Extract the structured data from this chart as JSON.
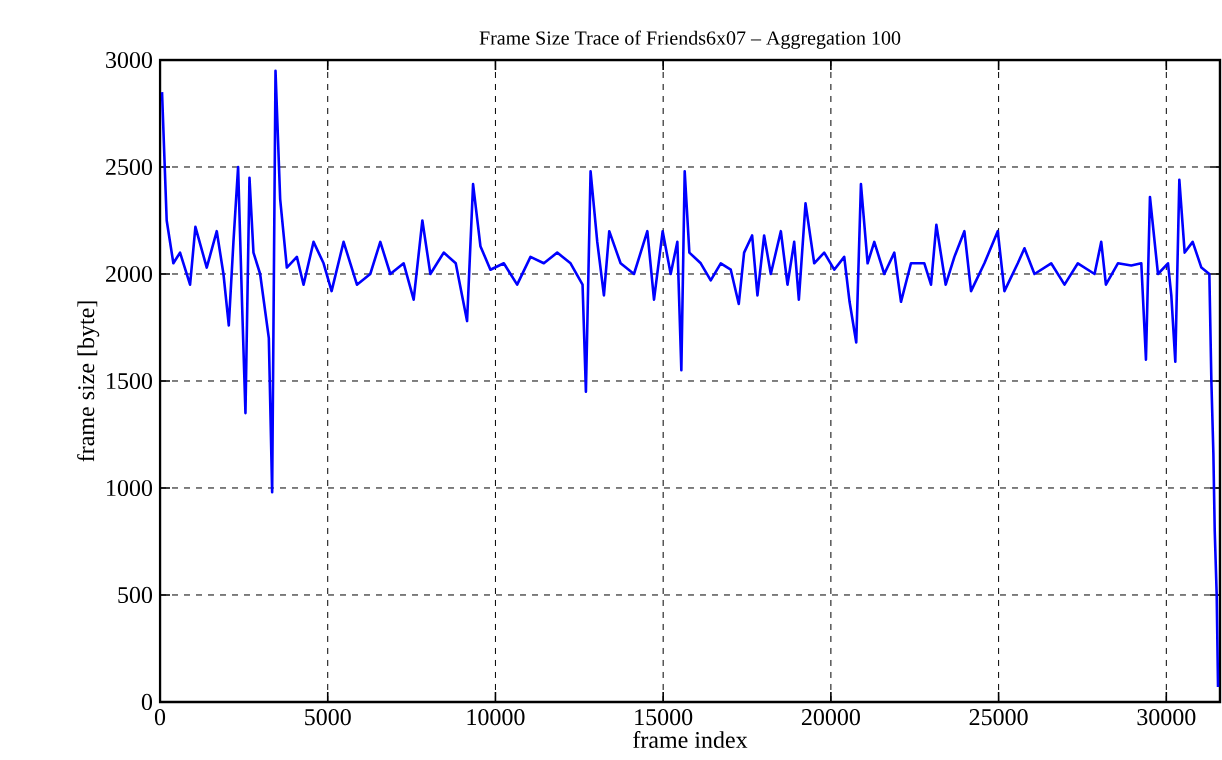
{
  "chart_data": {
    "type": "line",
    "title": "Frame Size Trace of Friends6x07 – Aggregation 100",
    "xlabel": "frame index",
    "ylabel": "frame size [byte]",
    "xlim": [
      0,
      31600
    ],
    "ylim": [
      0,
      3000
    ],
    "xticks": [
      0,
      5000,
      10000,
      15000,
      20000,
      25000,
      30000
    ],
    "yticks": [
      0,
      500,
      1000,
      1500,
      2000,
      2500,
      3000
    ],
    "grid": true,
    "marker": "none",
    "line_style": "solid",
    "series": [
      {
        "color": "#0000ff",
        "x": [
          60,
          199,
          398,
          597,
          896,
          1055,
          1393,
          1692,
          1891,
          2050,
          2189,
          2328,
          2448,
          2547,
          2667,
          2786,
          2985,
          3244,
          3343,
          3443,
          3582,
          3781,
          4080,
          4279,
          4577,
          4876,
          5115,
          5473,
          5871,
          6268,
          6567,
          6866,
          7264,
          7562,
          7821,
          8060,
          8458,
          8816,
          9154,
          9333,
          9552,
          9850,
          10249,
          10647,
          11045,
          11443,
          11841,
          12239,
          12597,
          12697,
          12836,
          13035,
          13234,
          13393,
          13731,
          14130,
          14528,
          14727,
          14985,
          15224,
          15423,
          15542,
          15642,
          15781,
          16120,
          16418,
          16717,
          17015,
          17254,
          17413,
          17652,
          17811,
          18010,
          18209,
          18508,
          18707,
          18906,
          19045,
          19244,
          19503,
          19801,
          20100,
          20398,
          20557,
          20756,
          20896,
          21095,
          21294,
          21592,
          21891,
          22090,
          22388,
          22786,
          22985,
          23144,
          23423,
          23682,
          23980,
          24179,
          24577,
          24975,
          25174,
          25572,
          25771,
          26070,
          26567,
          26965,
          27363,
          27861,
          28060,
          28199,
          28557,
          28955,
          29254,
          29393,
          29512,
          29751,
          30050,
          30149,
          30268,
          30388,
          30547,
          30786,
          31045,
          31283,
          31343,
          31403,
          31443,
          31502,
          31542
        ],
        "values": [
          2850,
          2250,
          2050,
          2100,
          1950,
          2220,
          2030,
          2200,
          2000,
          1760,
          2150,
          2500,
          1850,
          1350,
          2450,
          2100,
          2000,
          1700,
          980,
          2950,
          2350,
          2030,
          2080,
          1950,
          2150,
          2050,
          1920,
          2150,
          1950,
          2000,
          2150,
          2000,
          2050,
          1880,
          2250,
          2000,
          2100,
          2050,
          1780,
          2420,
          2130,
          2020,
          2050,
          1950,
          2080,
          2050,
          2100,
          2050,
          1950,
          1450,
          2480,
          2150,
          1900,
          2200,
          2050,
          2000,
          2200,
          1880,
          2200,
          2000,
          2150,
          1550,
          2480,
          2100,
          2050,
          1970,
          2050,
          2020,
          1860,
          2100,
          2180,
          1900,
          2180,
          2000,
          2200,
          1950,
          2150,
          1880,
          2330,
          2050,
          2100,
          2020,
          2080,
          1870,
          1680,
          2420,
          2050,
          2150,
          2000,
          2100,
          1870,
          2050,
          2050,
          1950,
          2230,
          1950,
          2080,
          2200,
          1920,
          2050,
          2200,
          1920,
          2050,
          2120,
          2000,
          2050,
          1950,
          2050,
          2000,
          2150,
          1950,
          2050,
          2040,
          2050,
          1600,
          2360,
          2000,
          2050,
          1900,
          1590,
          2440,
          2100,
          2150,
          2030,
          2000,
          1500,
          1160,
          800,
          500,
          70
        ]
      }
    ]
  }
}
